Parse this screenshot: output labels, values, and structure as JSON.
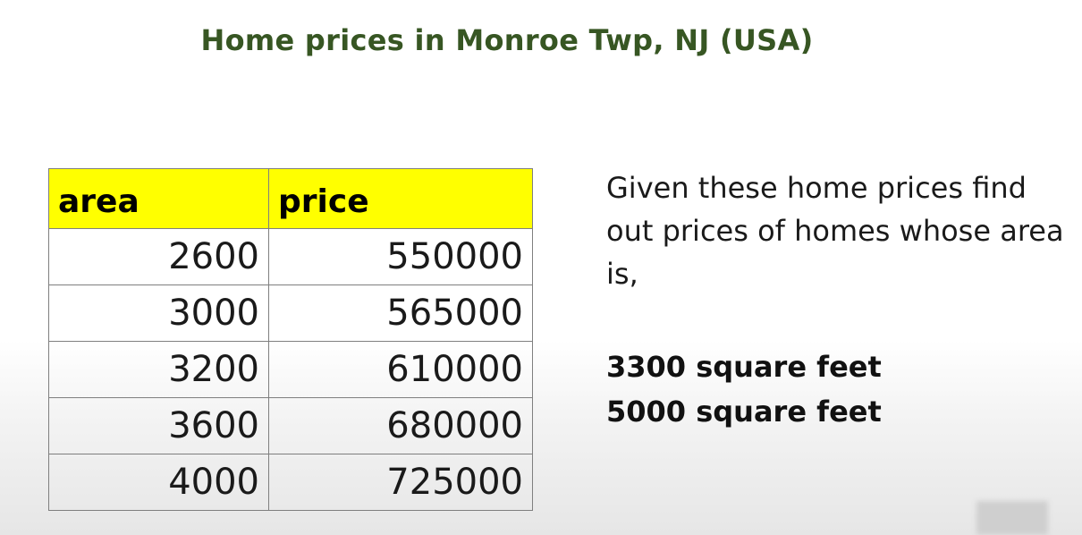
{
  "title": "Home prices in Monroe Twp, NJ (USA)",
  "table": {
    "headers": [
      "area",
      "price"
    ],
    "rows": [
      [
        "2600",
        "550000"
      ],
      [
        "3000",
        "565000"
      ],
      [
        "3200",
        "610000"
      ],
      [
        "3600",
        "680000"
      ],
      [
        "4000",
        "725000"
      ]
    ]
  },
  "prompt": "Given these home prices find out prices of homes whose area is,",
  "queries": [
    "3300 square feet",
    "5000 square feet"
  ],
  "colors": {
    "title": "#375623",
    "header_fill": "#ffff00",
    "border": "#7f7f7f"
  }
}
